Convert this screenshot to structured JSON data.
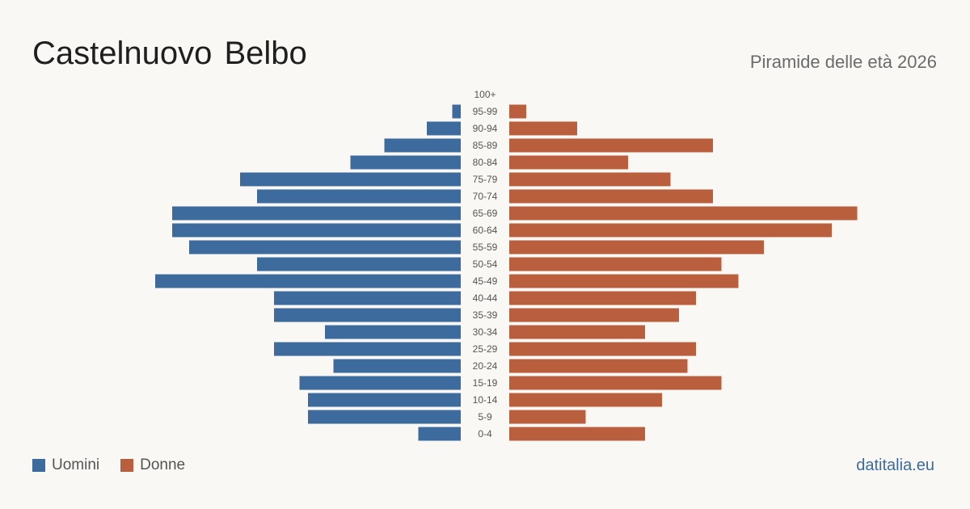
{
  "header": {
    "title": "Castelnuovo Belbo",
    "subtitle": "Piramide delle età 2026"
  },
  "legend": {
    "men_label": "Uomini",
    "women_label": "Donne"
  },
  "colors": {
    "men": "#3d6b9e",
    "women": "#b95f3e"
  },
  "footer": {
    "brand": "datitalia.eu"
  },
  "chart_data": {
    "type": "bar",
    "orientation": "horizontal-pyramid",
    "categories": [
      "100+",
      "95-99",
      "90-94",
      "85-89",
      "80-84",
      "75-79",
      "70-74",
      "65-69",
      "60-64",
      "55-59",
      "50-54",
      "45-49",
      "40-44",
      "35-39",
      "30-34",
      "25-29",
      "20-24",
      "15-19",
      "10-14",
      "5-9",
      "0-4"
    ],
    "series": [
      {
        "name": "Uomini",
        "values": [
          0,
          1,
          4,
          9,
          13,
          26,
          24,
          34,
          34,
          32,
          24,
          36,
          22,
          22,
          16,
          22,
          15,
          19,
          18,
          18,
          5
        ]
      },
      {
        "name": "Donne",
        "values": [
          0,
          2,
          8,
          24,
          14,
          19,
          24,
          41,
          38,
          30,
          25,
          27,
          22,
          20,
          16,
          22,
          21,
          25,
          18,
          9,
          16
        ]
      }
    ],
    "grid": false,
    "legend_position": "bottom-left"
  }
}
